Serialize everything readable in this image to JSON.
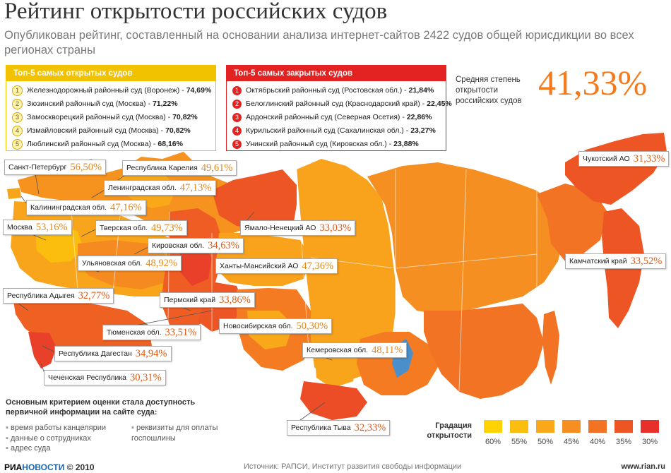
{
  "title": "Рейтинг открытости российских судов",
  "subtitle": "Опубликован рейтинг, составленный на основании анализа интернет-сайтов 2422 судов общей юрисдикции во всех регионах страны",
  "top5": {
    "header": "Топ-5 самых открытых судов",
    "items": [
      {
        "num": "1",
        "name": "Железнодорожный районный суд (Воронеж) -",
        "value": "74,69%"
      },
      {
        "num": "2",
        "name": "Зюзинский районный суд (Москва) -",
        "value": "71,22%"
      },
      {
        "num": "3",
        "name": "Замоскворецкий районный суд (Москва) -",
        "value": "70,82%"
      },
      {
        "num": "4",
        "name": "Измайловский районный суд (Москва) -",
        "value": "70,82%"
      },
      {
        "num": "5",
        "name": "Люблинский районный суд (Москва) -",
        "value": "68,16%"
      }
    ]
  },
  "bottom5": {
    "header": "Топ-5 самых закрытых судов",
    "items": [
      {
        "num": "1",
        "name": "Октябрьский районный суд (Ростовская обл.) -",
        "value": "21,84%"
      },
      {
        "num": "2",
        "name": "Белоглинский районный суд (Краснодарский край) -",
        "value": "22,45%"
      },
      {
        "num": "3",
        "name": "Ардонский районный суд (Северная Осетия) -",
        "value": "22,86%"
      },
      {
        "num": "4",
        "name": "Курильский районный суд (Сахалинская обл.) -",
        "value": "23,27%"
      },
      {
        "num": "5",
        "name": "Унинский районный суд (Кировская обл.) -",
        "value": "23,88%"
      }
    ]
  },
  "average": {
    "label": "Средняя степень открытости российских судов",
    "value": "41,33%"
  },
  "regions": [
    {
      "name": "Санкт-Петербург",
      "value": "56,50%"
    },
    {
      "name": "Республика Карелия",
      "value": "49,61%"
    },
    {
      "name": "Ленинградская обл.",
      "value": "47,13%"
    },
    {
      "name": "Калининградская обл.",
      "value": "47,16%"
    },
    {
      "name": "Москва",
      "value": "53,16%"
    },
    {
      "name": "Тверская обл.",
      "value": "49,73%"
    },
    {
      "name": "Ямало-Ненецкий АО",
      "value": "33,03%"
    },
    {
      "name": "Кировская обл.",
      "value": "34,63%"
    },
    {
      "name": "Ульяновская обл.",
      "value": "48,92%"
    },
    {
      "name": "Ханты-Мансийский АО",
      "value": "47,36%"
    },
    {
      "name": "Республика Адыгея",
      "value": "32,77%"
    },
    {
      "name": "Пермский край",
      "value": "33,86%"
    },
    {
      "name": "Новосибирская обл.",
      "value": "50,30%"
    },
    {
      "name": "Тюменская обл.",
      "value": "33,51%"
    },
    {
      "name": "Республика Дагестан",
      "value": "34,94%"
    },
    {
      "name": "Кемеровская обл.",
      "value": "48,11%"
    },
    {
      "name": "Чеченская Республика",
      "value": "30,31%"
    },
    {
      "name": "Республика Тыва",
      "value": "32,33%"
    },
    {
      "name": "Чукотский АО",
      "value": "31,33%"
    },
    {
      "name": "Камчатский край",
      "value": "33,52%"
    }
  ],
  "criteria": {
    "heading": "Основным критерием оценки стала доступность первичной информации на сайте суда:",
    "items": [
      "время работы канцелярии",
      "данные о сотрудниках",
      "адрес суда",
      "реквизиты для оплаты госпошлины"
    ]
  },
  "legend": {
    "title": "Градация открытости",
    "labels": [
      "60%",
      "55%",
      "50%",
      "45%",
      "40%",
      "35%",
      "30%"
    ],
    "colors": [
      "#ffd200",
      "#fcbe0e",
      "#f9a81a",
      "#f68f22",
      "#f27323",
      "#ee5524",
      "#e8302a"
    ]
  },
  "footer": {
    "logo_ria": "РИА",
    "logo_novosti": "НОВОСТИ",
    "year": "© 2010",
    "source": "Источник: РАПСИ, Институт развития свободы информации",
    "site": "www.rian.ru"
  }
}
